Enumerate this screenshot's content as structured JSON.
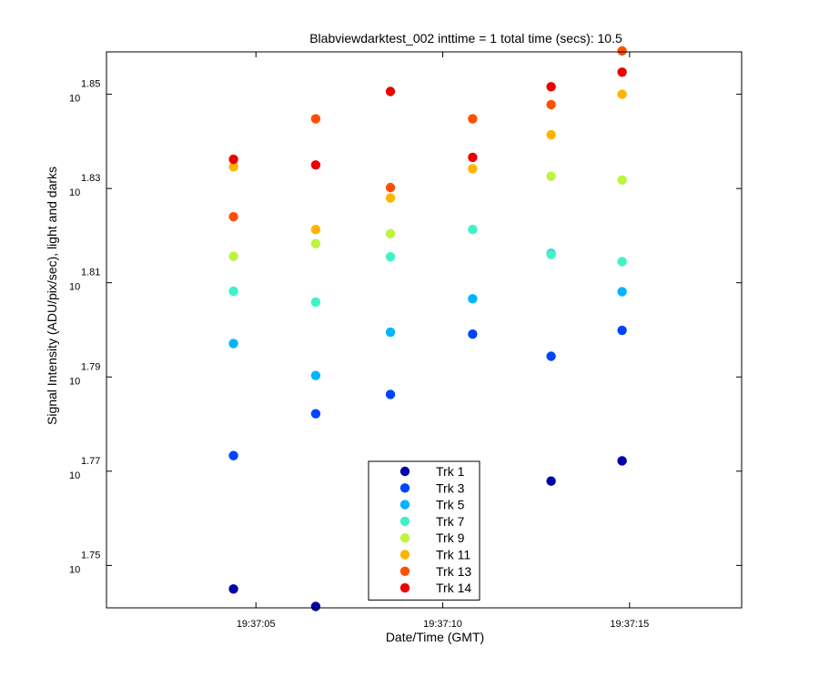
{
  "chart_data": {
    "type": "scatter",
    "title": "Blabviewdarktest_002 inttime = 1 total time (secs): 10.5",
    "xlabel": "Date/Time (GMT)",
    "ylabel": "Signal Intensity (ADU/pix/sec), light and darks",
    "x_tick_labels": [
      "19:37:05",
      "19:37:10",
      "19:37:15"
    ],
    "y_ticks": [
      {
        "base": "10",
        "exp": "1.75"
      },
      {
        "base": "10",
        "exp": "1.77"
      },
      {
        "base": "10",
        "exp": "1.79"
      },
      {
        "base": "10",
        "exp": "1.81"
      },
      {
        "base": "10",
        "exp": "1.83"
      },
      {
        "base": "10",
        "exp": "1.85"
      }
    ],
    "y_scale": "log",
    "x_range_sec_of_minute": [
      1.0,
      18.0
    ],
    "y_range_log10": [
      1.741,
      1.859
    ],
    "grid": false,
    "legend_position": "bottom-center",
    "x": [
      4.4,
      6.6,
      8.6,
      10.8,
      12.9,
      14.8
    ],
    "series": [
      {
        "name": "Trk 1",
        "color": "#0000aa",
        "values_log10": [
          1.745,
          1.7413,
          null,
          null,
          1.7679,
          1.7722
        ]
      },
      {
        "name": "Trk 3",
        "color": "#0044ff",
        "values_log10": [
          1.7733,
          1.7822,
          1.7863,
          1.7991,
          1.7944,
          1.7999
        ]
      },
      {
        "name": "Trk 5",
        "color": "#00b4ff",
        "values_log10": [
          1.7971,
          1.7903,
          1.7995,
          1.8066,
          1.8162,
          1.8081
        ]
      },
      {
        "name": "Trk 7",
        "color": "#3ff2c8",
        "values_log10": [
          1.8082,
          1.8059,
          1.8155,
          1.8213,
          1.816,
          1.8145
        ]
      },
      {
        "name": "Trk 9",
        "color": "#bcf53c",
        "values_log10": [
          1.8156,
          1.8183,
          1.8204,
          null,
          1.8326,
          1.8318
        ]
      },
      {
        "name": "Trk 11",
        "color": "#ffb400",
        "values_log10": [
          1.8346,
          1.8213,
          1.828,
          1.8342,
          1.8414,
          1.85
        ]
      },
      {
        "name": "Trk 13",
        "color": "#ff5000",
        "values_log10": [
          1.824,
          1.8448,
          1.8302,
          1.8448,
          1.8478,
          1.8592
        ]
      },
      {
        "name": "Trk 14",
        "color": "#ee0000",
        "values_log10": [
          1.8362,
          1.835,
          1.8506,
          1.8366,
          1.8516,
          1.8547
        ]
      }
    ]
  }
}
